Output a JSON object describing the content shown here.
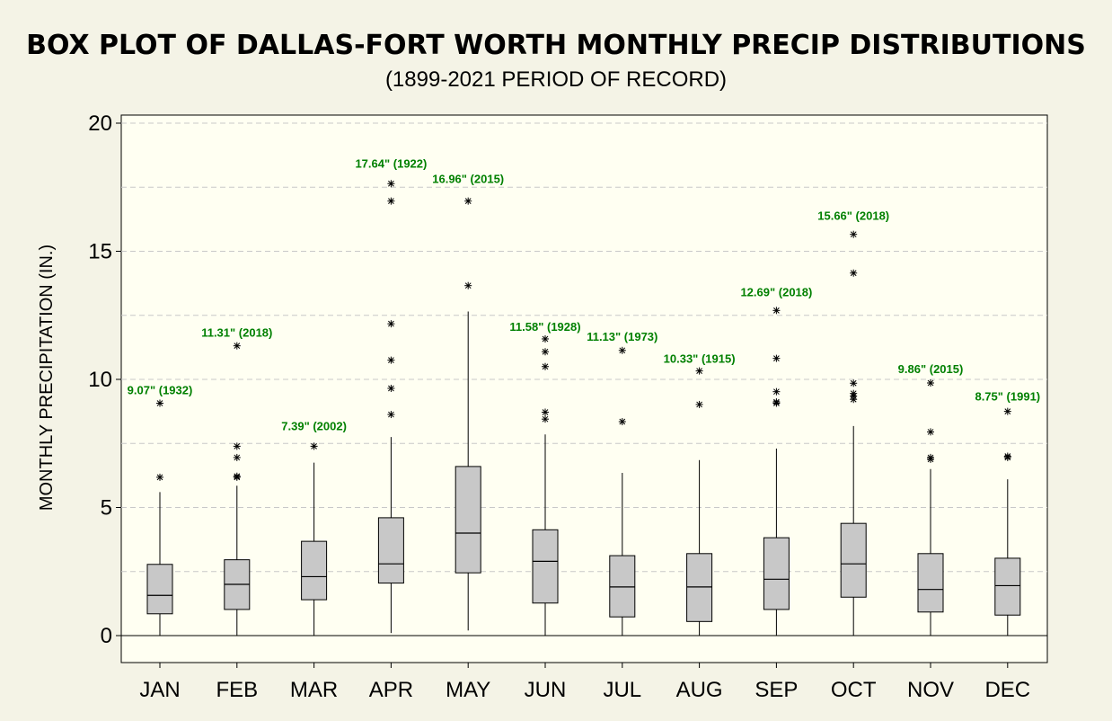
{
  "chart_data": {
    "type": "box",
    "title": "BOX PLOT OF DALLAS-FORT WORTH MONTHLY PRECIP DISTRIBUTIONS",
    "subtitle": "(1899-2021 PERIOD OF RECORD)",
    "ylabel": "MONTHLY PRECIPITATION (IN.)",
    "xlabel": "",
    "ylim": [
      -1,
      20.3
    ],
    "yticks": [
      "0",
      "5",
      "10",
      "15",
      "20"
    ],
    "grid": true,
    "annotation_color": "#008000",
    "box_fill": "#c8c8c8",
    "plot_background": "#fffff2",
    "categories": [
      "JAN",
      "FEB",
      "MAR",
      "APR",
      "MAY",
      "JUN",
      "JUL",
      "AUG",
      "SEP",
      "OCT",
      "NOV",
      "DEC"
    ],
    "boxes": [
      {
        "month": "JAN",
        "min": 0.0,
        "q1": 0.85,
        "median": 1.57,
        "q3": 2.78,
        "max": 5.6,
        "outliers": [
          6.18,
          9.07
        ],
        "max_label": "9.07\" (1932)"
      },
      {
        "month": "FEB",
        "min": 0.0,
        "q1": 1.02,
        "median": 2.0,
        "q3": 2.96,
        "max": 5.85,
        "outliers": [
          6.18,
          6.22,
          6.95,
          7.39,
          11.31
        ],
        "max_label": "11.31\" (2018)"
      },
      {
        "month": "MAR",
        "min": 0.0,
        "q1": 1.4,
        "median": 2.3,
        "q3": 3.68,
        "max": 6.75,
        "outliers": [
          7.39
        ],
        "max_label": "7.39\" (2002)"
      },
      {
        "month": "APR",
        "min": 0.1,
        "q1": 2.05,
        "median": 2.8,
        "q3": 4.6,
        "max": 7.75,
        "outliers": [
          8.63,
          9.65,
          10.75,
          12.17,
          16.96,
          17.64
        ],
        "max_label": "17.64\" (1922)"
      },
      {
        "month": "MAY",
        "min": 0.2,
        "q1": 2.45,
        "median": 4.0,
        "q3": 6.6,
        "max": 12.65,
        "outliers": [
          13.66,
          16.96
        ],
        "max_label": "16.96\" (2015)"
      },
      {
        "month": "JUN",
        "min": 0.0,
        "q1": 1.27,
        "median": 2.9,
        "q3": 4.13,
        "max": 7.85,
        "outliers": [
          8.45,
          8.72,
          10.5,
          11.08,
          11.58
        ],
        "max_label": "11.58\" (1928)"
      },
      {
        "month": "JUL",
        "min": 0.0,
        "q1": 0.73,
        "median": 1.9,
        "q3": 3.12,
        "max": 6.35,
        "outliers": [
          8.35,
          11.13
        ],
        "max_label": "11.13\" (1973)"
      },
      {
        "month": "AUG",
        "min": 0.0,
        "q1": 0.55,
        "median": 1.9,
        "q3": 3.2,
        "max": 6.85,
        "outliers": [
          9.02,
          10.33
        ],
        "max_label": "10.33\" (1915)"
      },
      {
        "month": "SEP",
        "min": 0.0,
        "q1": 1.02,
        "median": 2.2,
        "q3": 3.82,
        "max": 7.3,
        "outliers": [
          9.07,
          9.12,
          9.52,
          10.82,
          12.69
        ],
        "max_label": "12.69\" (2018)"
      },
      {
        "month": "OCT",
        "min": 0.0,
        "q1": 1.5,
        "median": 2.8,
        "q3": 4.38,
        "max": 8.18,
        "outliers": [
          9.22,
          9.35,
          9.45,
          9.85,
          14.15,
          15.66
        ],
        "max_label": "15.66\" (2018)"
      },
      {
        "month": "NOV",
        "min": 0.0,
        "q1": 0.92,
        "median": 1.8,
        "q3": 3.2,
        "max": 6.5,
        "outliers": [
          6.88,
          6.95,
          7.95,
          9.86
        ],
        "max_label": "9.86\" (2015)"
      },
      {
        "month": "DEC",
        "min": 0.0,
        "q1": 0.8,
        "median": 1.95,
        "q3": 3.02,
        "max": 6.1,
        "outliers": [
          6.95,
          7.0,
          8.75
        ],
        "max_label": "8.75\" (1991)"
      }
    ]
  }
}
